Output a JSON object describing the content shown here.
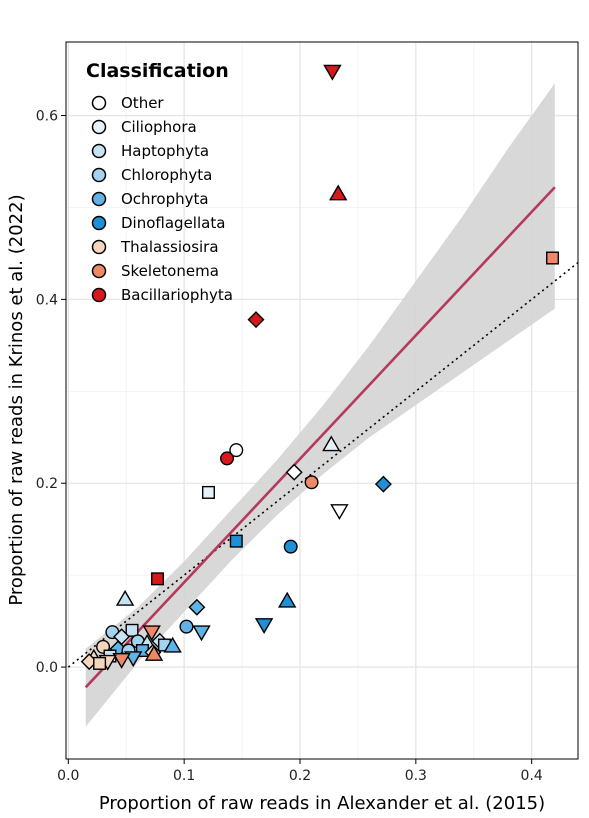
{
  "chart_data": {
    "type": "scatter",
    "xlabel": "Proportion of raw reads in Alexander et al. (2015)",
    "ylabel": "Proportion of raw reads in Krinos et al. (2022)",
    "xlim": [
      -0.002,
      0.44
    ],
    "ylim": [
      -0.1,
      0.68
    ],
    "x_ticks": [
      0.0,
      0.1,
      0.2,
      0.3,
      0.4
    ],
    "x_tick_labels": [
      "0.0",
      "0.1",
      "0.2",
      "0.3",
      "0.4"
    ],
    "y_ticks": [
      0.0,
      0.2,
      0.4,
      0.6
    ],
    "y_tick_labels": [
      "0.0",
      "0.2",
      "0.4",
      "0.6"
    ],
    "grid": true,
    "legend": {
      "title": "Classification",
      "placement": "top-left",
      "entries": [
        {
          "label": "Other",
          "color": "#ffffff"
        },
        {
          "label": "Ciliophora",
          "color": "#e6f2f9"
        },
        {
          "label": "Haptophyta",
          "color": "#c6e3f4"
        },
        {
          "label": "Chlorophyta",
          "color": "#a3d3ef"
        },
        {
          "label": "Ochrophyta",
          "color": "#5fb3e6"
        },
        {
          "label": "Dinoflagellata",
          "color": "#1f8fd6"
        },
        {
          "label": "Thalassiosira",
          "color": "#f6d5bd"
        },
        {
          "label": "Skeletonema",
          "color": "#ee8866"
        },
        {
          "label": "Bacillariophyta",
          "color": "#d7191c"
        }
      ]
    },
    "fit_line": {
      "x": [
        0.015,
        0.42
      ],
      "y": [
        -0.022,
        0.522
      ],
      "color": "#b5395c"
    },
    "confidence_band": {
      "x": [
        0.015,
        0.06,
        0.1,
        0.14,
        0.18,
        0.22,
        0.26,
        0.3,
        0.34,
        0.38,
        0.42
      ],
      "lower": [
        -0.065,
        0.005,
        0.06,
        0.115,
        0.165,
        0.21,
        0.25,
        0.285,
        0.32,
        0.355,
        0.39
      ],
      "upper": [
        0.02,
        0.065,
        0.115,
        0.17,
        0.225,
        0.285,
        0.35,
        0.42,
        0.49,
        0.565,
        0.635
      ]
    },
    "identity_line": {
      "x": [
        0.0,
        0.44
      ],
      "y": [
        0.0,
        0.44
      ],
      "style": "dotted"
    },
    "points": [
      {
        "x": 0.228,
        "y": 0.648,
        "class": "Bacillariophyta",
        "shape": "triangle-down"
      },
      {
        "x": 0.233,
        "y": 0.515,
        "class": "Bacillariophyta",
        "shape": "triangle-up"
      },
      {
        "x": 0.418,
        "y": 0.445,
        "class": "Skeletonema",
        "shape": "square"
      },
      {
        "x": 0.162,
        "y": 0.378,
        "class": "Bacillariophyta",
        "shape": "diamond"
      },
      {
        "x": 0.145,
        "y": 0.236,
        "class": "Other",
        "shape": "circle"
      },
      {
        "x": 0.137,
        "y": 0.227,
        "class": "Bacillariophyta",
        "shape": "circle"
      },
      {
        "x": 0.227,
        "y": 0.242,
        "class": "Ciliophora",
        "shape": "triangle-up"
      },
      {
        "x": 0.195,
        "y": 0.212,
        "class": "Other",
        "shape": "diamond"
      },
      {
        "x": 0.21,
        "y": 0.201,
        "class": "Skeletonema",
        "shape": "circle"
      },
      {
        "x": 0.272,
        "y": 0.199,
        "class": "Dinoflagellata",
        "shape": "diamond"
      },
      {
        "x": 0.121,
        "y": 0.19,
        "class": "Ciliophora",
        "shape": "square"
      },
      {
        "x": 0.234,
        "y": 0.17,
        "class": "Other",
        "shape": "triangle-down"
      },
      {
        "x": 0.145,
        "y": 0.137,
        "class": "Dinoflagellata",
        "shape": "square"
      },
      {
        "x": 0.192,
        "y": 0.131,
        "class": "Dinoflagellata",
        "shape": "circle"
      },
      {
        "x": 0.077,
        "y": 0.096,
        "class": "Bacillariophyta",
        "shape": "square"
      },
      {
        "x": 0.049,
        "y": 0.074,
        "class": "Haptophyta",
        "shape": "triangle-up"
      },
      {
        "x": 0.189,
        "y": 0.072,
        "class": "Dinoflagellata",
        "shape": "triangle-up"
      },
      {
        "x": 0.111,
        "y": 0.065,
        "class": "Ochrophyta",
        "shape": "diamond"
      },
      {
        "x": 0.169,
        "y": 0.046,
        "class": "Dinoflagellata",
        "shape": "triangle-down"
      },
      {
        "x": 0.102,
        "y": 0.044,
        "class": "Ochrophyta",
        "shape": "circle"
      },
      {
        "x": 0.115,
        "y": 0.038,
        "class": "Ochrophyta",
        "shape": "triangle-down"
      },
      {
        "x": 0.055,
        "y": 0.04,
        "class": "Haptophyta",
        "shape": "square"
      },
      {
        "x": 0.038,
        "y": 0.038,
        "class": "Chlorophyta",
        "shape": "circle"
      },
      {
        "x": 0.072,
        "y": 0.038,
        "class": "Skeletonema",
        "shape": "triangle-down"
      },
      {
        "x": 0.046,
        "y": 0.033,
        "class": "Haptophyta",
        "shape": "diamond"
      },
      {
        "x": 0.06,
        "y": 0.028,
        "class": "Chlorophyta",
        "shape": "circle"
      },
      {
        "x": 0.079,
        "y": 0.028,
        "class": "Haptophyta",
        "shape": "diamond"
      },
      {
        "x": 0.068,
        "y": 0.026,
        "class": "Haptophyta",
        "shape": "triangle-up"
      },
      {
        "x": 0.083,
        "y": 0.024,
        "class": "Chlorophyta",
        "shape": "square"
      },
      {
        "x": 0.09,
        "y": 0.023,
        "class": "Ochrophyta",
        "shape": "triangle-up"
      },
      {
        "x": 0.03,
        "y": 0.022,
        "class": "Thalassiosira",
        "shape": "circle"
      },
      {
        "x": 0.043,
        "y": 0.02,
        "class": "Ochrophyta",
        "shape": "diamond"
      },
      {
        "x": 0.052,
        "y": 0.018,
        "class": "Chlorophyta",
        "shape": "circle"
      },
      {
        "x": 0.064,
        "y": 0.018,
        "class": "Ochrophyta",
        "shape": "square"
      },
      {
        "x": 0.073,
        "y": 0.016,
        "class": "Thalassiosira",
        "shape": "diamond"
      },
      {
        "x": 0.074,
        "y": 0.014,
        "class": "Skeletonema",
        "shape": "triangle-up"
      },
      {
        "x": 0.036,
        "y": 0.012,
        "class": "Haptophyta",
        "shape": "square"
      },
      {
        "x": 0.022,
        "y": 0.01,
        "class": "Thalassiosira",
        "shape": "triangle-up"
      },
      {
        "x": 0.056,
        "y": 0.01,
        "class": "Ochrophyta",
        "shape": "triangle-down"
      },
      {
        "x": 0.046,
        "y": 0.008,
        "class": "Skeletonema",
        "shape": "triangle-down"
      },
      {
        "x": 0.018,
        "y": 0.006,
        "class": "Thalassiosira",
        "shape": "diamond"
      },
      {
        "x": 0.034,
        "y": 0.006,
        "class": "Thalassiosira",
        "shape": "triangle-down"
      },
      {
        "x": 0.027,
        "y": 0.004,
        "class": "Thalassiosira",
        "shape": "square"
      }
    ]
  }
}
